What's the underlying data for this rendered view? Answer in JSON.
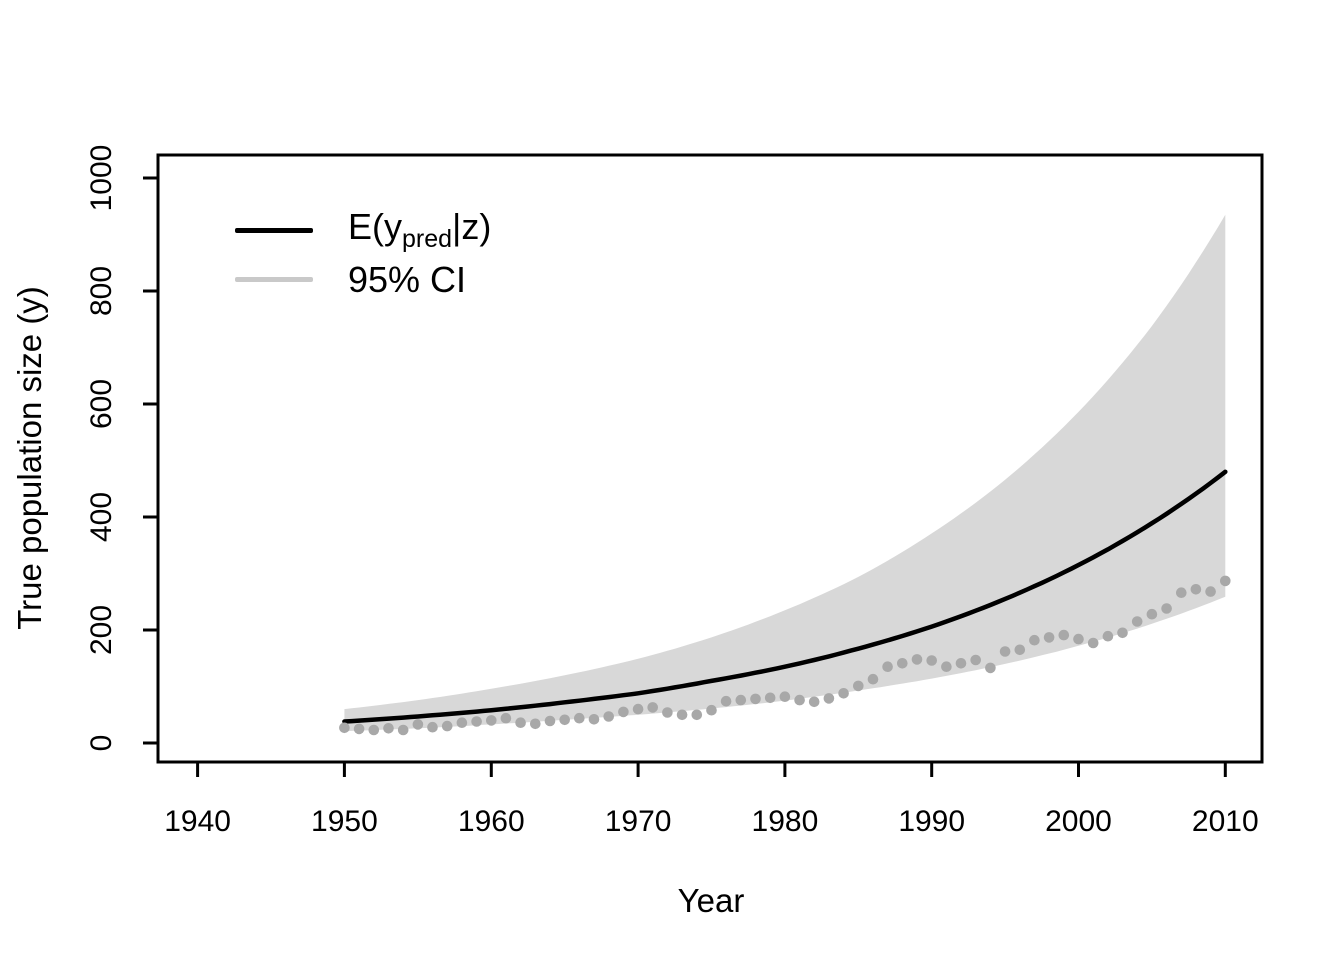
{
  "chart_data": {
    "type": "line",
    "title": "",
    "xlabel": "Year",
    "ylabel": "True population size (y)",
    "x_ticks": [
      1940,
      1950,
      1960,
      1970,
      1980,
      1990,
      2000,
      2010
    ],
    "y_ticks": [
      0,
      200,
      400,
      600,
      800,
      1000
    ],
    "xlim": [
      1937.3,
      2012.5
    ],
    "ylim": [
      -33.6,
      1040.7
    ],
    "grid": false,
    "legend_position": "top-left",
    "colors": {
      "mean_line": "#000000",
      "ci_band": "#d8d8d8",
      "ci_legend_line": "#c9c9c9",
      "dots": "#a8a8a8",
      "axis": "#000000"
    },
    "series": [
      {
        "name": "E(y_pred|z)",
        "type": "line",
        "years": [
          1950,
          1955,
          1960,
          1965,
          1970,
          1975,
          1980,
          1985,
          1990,
          1995,
          2000,
          2005,
          2010
        ],
        "values": [
          38,
          47,
          58,
          72,
          88,
          110,
          135,
          167,
          206,
          255,
          315,
          389,
          480
        ]
      },
      {
        "name": "95% CI upper",
        "type": "band-upper",
        "years": [
          1950,
          1955,
          1960,
          1965,
          1970,
          1975,
          1980,
          1985,
          1990,
          1995,
          2000,
          2005,
          2010
        ],
        "values": [
          60,
          76,
          96,
          120,
          149,
          187,
          235,
          294,
          371,
          466,
          586,
          738,
          935
        ]
      },
      {
        "name": "95% CI lower",
        "type": "band-lower",
        "years": [
          1950,
          1955,
          1960,
          1965,
          1970,
          1975,
          1980,
          1985,
          1990,
          1995,
          2000,
          2005,
          2010
        ],
        "values": [
          21,
          26,
          33,
          41,
          50,
          61,
          75,
          93,
          114,
          140,
          172,
          211,
          259
        ]
      },
      {
        "name": "observed counts",
        "type": "scatter",
        "years": [
          1950,
          1951,
          1952,
          1953,
          1954,
          1955,
          1956,
          1957,
          1958,
          1959,
          1960,
          1961,
          1962,
          1963,
          1964,
          1965,
          1966,
          1967,
          1968,
          1969,
          1970,
          1971,
          1972,
          1973,
          1974,
          1975,
          1976,
          1977,
          1978,
          1979,
          1980,
          1981,
          1982,
          1983,
          1984,
          1985,
          1986,
          1987,
          1988,
          1989,
          1990,
          1991,
          1992,
          1993,
          1994,
          1995,
          1996,
          1997,
          1998,
          1999,
          2000,
          2001,
          2002,
          2003,
          2004,
          2005,
          2006,
          2007,
          2008,
          2009,
          2010
        ],
        "values": [
          27,
          25,
          23,
          26,
          23,
          33,
          28,
          30,
          36,
          38,
          40,
          44,
          36,
          34,
          39,
          41,
          44,
          42,
          47,
          55,
          60,
          63,
          54,
          50,
          50,
          58,
          74,
          76,
          78,
          80,
          82,
          76,
          73,
          79,
          88,
          101,
          113,
          135,
          141,
          148,
          146,
          135,
          141,
          147,
          133,
          162,
          165,
          182,
          187,
          191,
          184,
          177,
          189,
          195,
          215,
          228,
          238,
          266,
          272,
          268,
          287
        ]
      }
    ],
    "legend": {
      "entries": [
        {
          "label_prefix": "E(y",
          "label_sub": "pred",
          "label_suffix": "|z)",
          "color": "#000000"
        },
        {
          "label": "95% CI",
          "color": "#c9c9c9"
        }
      ]
    }
  }
}
